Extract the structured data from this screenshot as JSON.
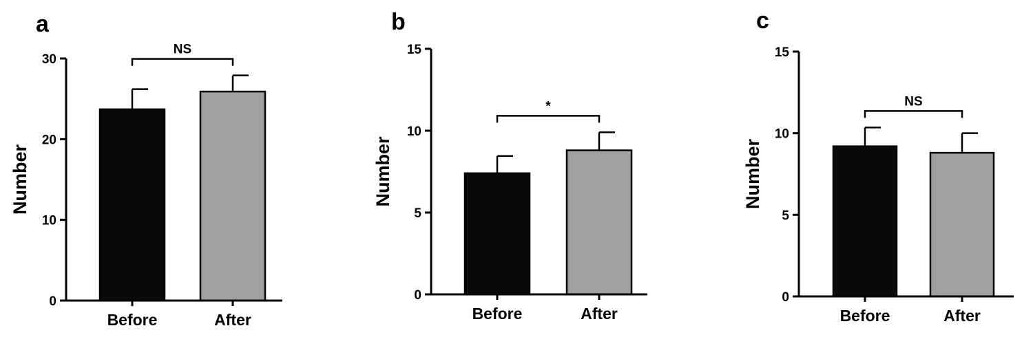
{
  "chart_data": [
    {
      "type": "bar",
      "panel": "a",
      "categories": [
        "Before",
        "After"
      ],
      "values": [
        23.7,
        25.9
      ],
      "errors": [
        2.5,
        2.0
      ],
      "ylabel": "Number",
      "ylim": [
        0,
        30
      ],
      "yticks": [
        0,
        10,
        20,
        30
      ],
      "significance": "NS",
      "bar_colors": [
        "#0a0a0a",
        "#a0a0a3"
      ],
      "grid": false
    },
    {
      "type": "bar",
      "panel": "b",
      "categories": [
        "Before",
        "After"
      ],
      "values": [
        7.4,
        8.8
      ],
      "errors": [
        1.05,
        1.1
      ],
      "ylabel": "Number",
      "ylim": [
        0,
        15
      ],
      "yticks": [
        0,
        5,
        10,
        15
      ],
      "significance": "*",
      "bar_colors": [
        "#0a0a0a",
        "#a0a0a3"
      ],
      "grid": false
    },
    {
      "type": "bar",
      "panel": "c",
      "categories": [
        "Before",
        "After"
      ],
      "values": [
        9.2,
        8.8
      ],
      "errors": [
        1.15,
        1.2
      ],
      "ylabel": "Number",
      "ylim": [
        0,
        15
      ],
      "yticks": [
        0,
        5,
        10,
        15
      ],
      "significance": "NS",
      "bar_colors": [
        "#0a0a0a",
        "#a0a0a3"
      ],
      "grid": false
    }
  ]
}
